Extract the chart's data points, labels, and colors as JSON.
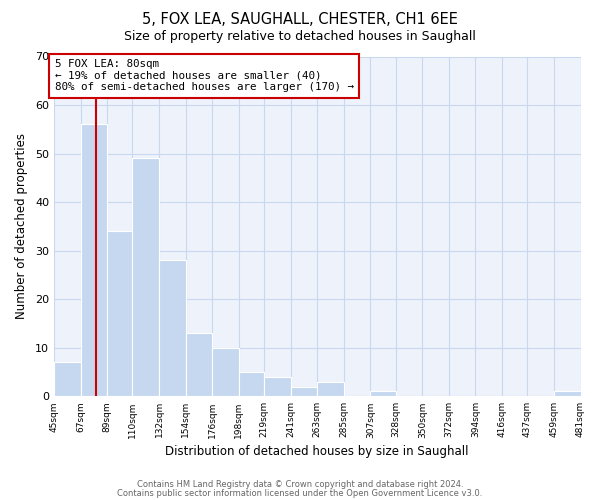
{
  "title": "5, FOX LEA, SAUGHALL, CHESTER, CH1 6EE",
  "subtitle": "Size of property relative to detached houses in Saughall",
  "xlabel": "Distribution of detached houses by size in Saughall",
  "ylabel": "Number of detached properties",
  "bar_edges": [
    45,
    67,
    89,
    110,
    132,
    154,
    176,
    198,
    219,
    241,
    263,
    285,
    307,
    328,
    350,
    372,
    394,
    416,
    437,
    459,
    481
  ],
  "bar_heights": [
    7,
    56,
    34,
    49,
    28,
    13,
    10,
    5,
    4,
    2,
    3,
    0,
    1,
    0,
    0,
    0,
    0,
    0,
    0,
    1
  ],
  "bar_color": "#c5d8f0",
  "bar_edge_color": "#ffffff",
  "vline_x": 80,
  "vline_color": "#cc0000",
  "annotation_text": "5 FOX LEA: 80sqm\n← 19% of detached houses are smaller (40)\n80% of semi-detached houses are larger (170) →",
  "annotation_box_color": "#ffffff",
  "annotation_box_edge_color": "#cc0000",
  "ylim": [
    0,
    70
  ],
  "yticks": [
    0,
    10,
    20,
    30,
    40,
    50,
    60,
    70
  ],
  "grid_color": "#c8d8ee",
  "bg_color": "#eef2fb",
  "footer_line1": "Contains HM Land Registry data © Crown copyright and database right 2024.",
  "footer_line2": "Contains public sector information licensed under the Open Government Licence v3.0.",
  "tick_labels": [
    "45sqm",
    "67sqm",
    "89sqm",
    "110sqm",
    "132sqm",
    "154sqm",
    "176sqm",
    "198sqm",
    "219sqm",
    "241sqm",
    "263sqm",
    "285sqm",
    "307sqm",
    "328sqm",
    "350sqm",
    "372sqm",
    "394sqm",
    "416sqm",
    "437sqm",
    "459sqm",
    "481sqm"
  ]
}
